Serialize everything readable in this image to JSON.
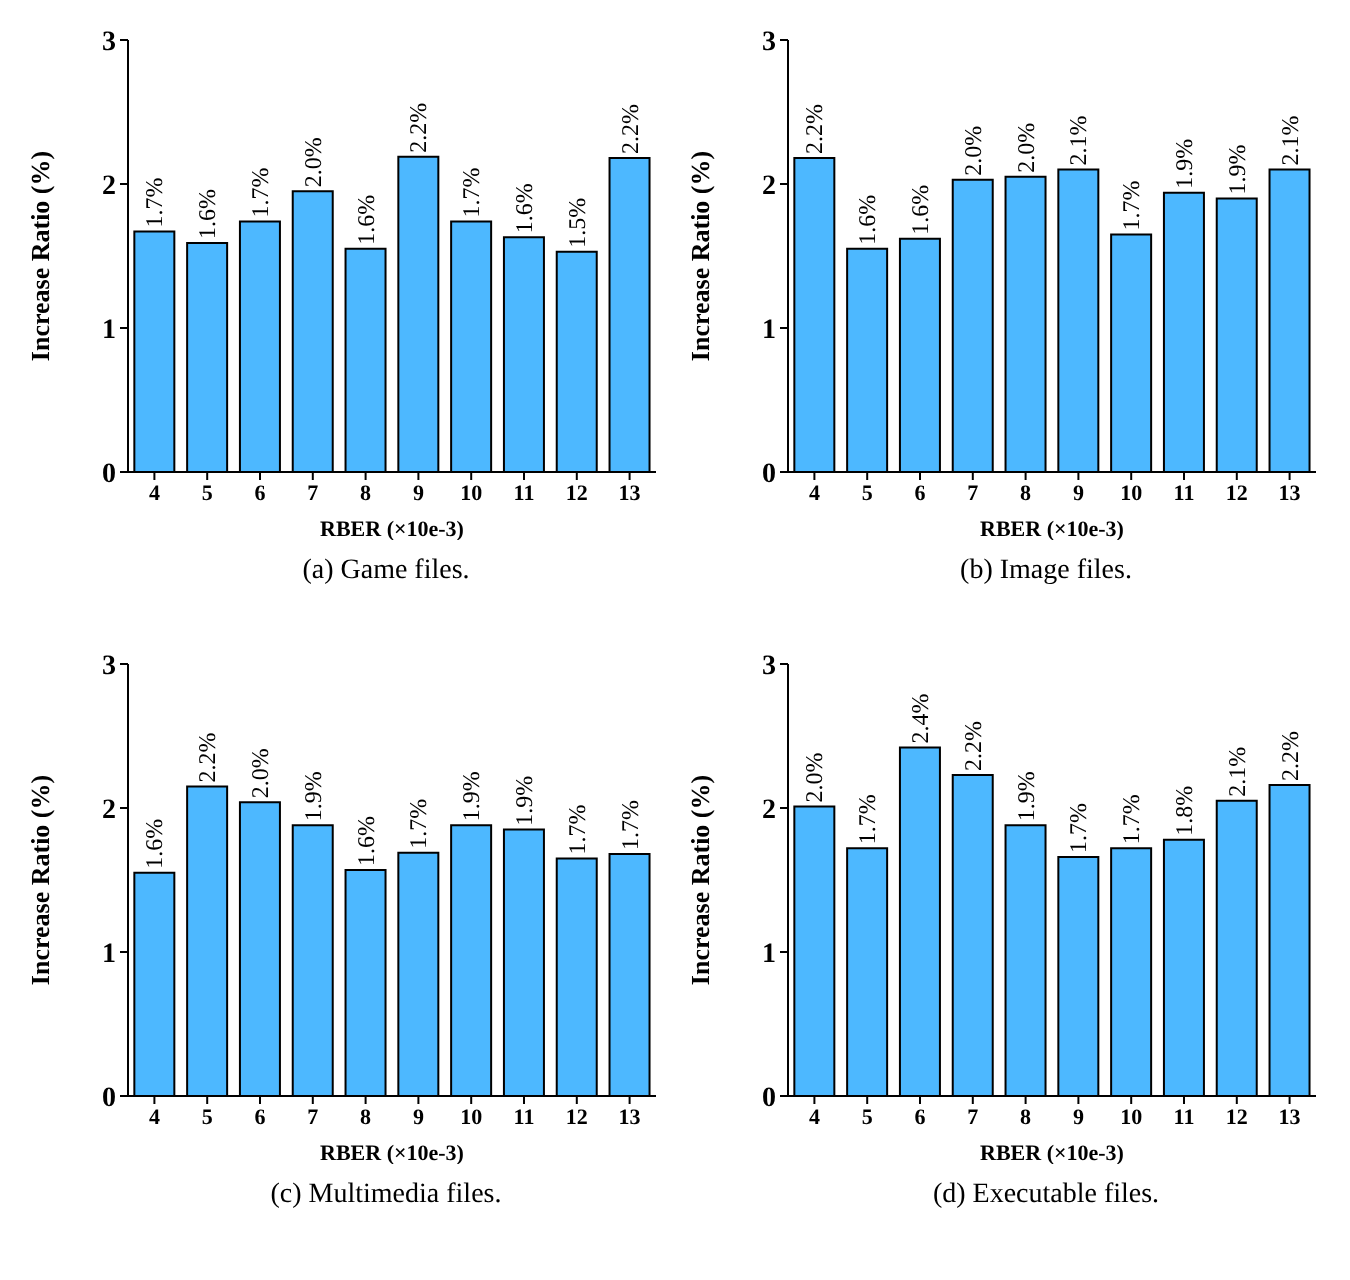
{
  "chart_data": [
    {
      "type": "bar",
      "xlabel": "RBER (×10e-3)",
      "ylabel": "Increase Ratio (%)",
      "categories": [
        "4",
        "5",
        "6",
        "7",
        "8",
        "9",
        "10",
        "11",
        "12",
        "13"
      ],
      "values": [
        1.67,
        1.59,
        1.74,
        1.95,
        1.55,
        2.19,
        1.74,
        1.63,
        1.53,
        2.18
      ],
      "value_labels": [
        "1.7%",
        "1.6%",
        "1.7%",
        "2.0%",
        "1.6%",
        "2.2%",
        "1.7%",
        "1.6%",
        "1.5%",
        "2.2%"
      ],
      "color": "#4db8ff",
      "ylim": [
        0,
        3
      ],
      "yticks": [
        0,
        1,
        2,
        3
      ],
      "annotations": [
        "(a) Game files."
      ]
    },
    {
      "type": "bar",
      "xlabel": "RBER (×10e-3)",
      "ylabel": "Increase Ratio (%)",
      "categories": [
        "4",
        "5",
        "6",
        "7",
        "8",
        "9",
        "10",
        "11",
        "12",
        "13"
      ],
      "values": [
        2.18,
        1.55,
        1.62,
        2.03,
        2.05,
        2.1,
        1.65,
        1.94,
        1.9,
        2.1
      ],
      "value_labels": [
        "2.2%",
        "1.6%",
        "1.6%",
        "2.0%",
        "2.0%",
        "2.1%",
        "1.7%",
        "1.9%",
        "1.9%",
        "2.1%"
      ],
      "color": "#4db8ff",
      "ylim": [
        0,
        3
      ],
      "yticks": [
        0,
        1,
        2,
        3
      ],
      "annotations": [
        "(b) Image files."
      ]
    },
    {
      "type": "bar",
      "xlabel": "RBER (×10e-3)",
      "ylabel": "Increase Ratio (%)",
      "categories": [
        "4",
        "5",
        "6",
        "7",
        "8",
        "9",
        "10",
        "11",
        "12",
        "13"
      ],
      "values": [
        1.55,
        2.15,
        2.04,
        1.88,
        1.57,
        1.69,
        1.88,
        1.85,
        1.65,
        1.68
      ],
      "value_labels": [
        "1.6%",
        "2.2%",
        "2.0%",
        "1.9%",
        "1.6%",
        "1.7%",
        "1.9%",
        "1.9%",
        "1.7%",
        "1.7%"
      ],
      "color": "#4db8ff",
      "ylim": [
        0,
        3
      ],
      "yticks": [
        0,
        1,
        2,
        3
      ],
      "annotations": [
        "(c) Multimedia files."
      ]
    },
    {
      "type": "bar",
      "xlabel": "RBER (×10e-3)",
      "ylabel": "Increase Ratio (%)",
      "categories": [
        "4",
        "5",
        "6",
        "7",
        "8",
        "9",
        "10",
        "11",
        "12",
        "13"
      ],
      "values": [
        2.01,
        1.72,
        2.42,
        2.23,
        1.88,
        1.66,
        1.72,
        1.78,
        2.05,
        2.16
      ],
      "value_labels": [
        "2.0%",
        "1.7%",
        "2.4%",
        "2.2%",
        "1.9%",
        "1.7%",
        "1.7%",
        "1.8%",
        "2.1%",
        "2.2%"
      ],
      "color": "#4db8ff",
      "ylim": [
        0,
        3
      ],
      "yticks": [
        0,
        1,
        2,
        3
      ],
      "annotations": [
        "(d) Executable files."
      ]
    }
  ]
}
